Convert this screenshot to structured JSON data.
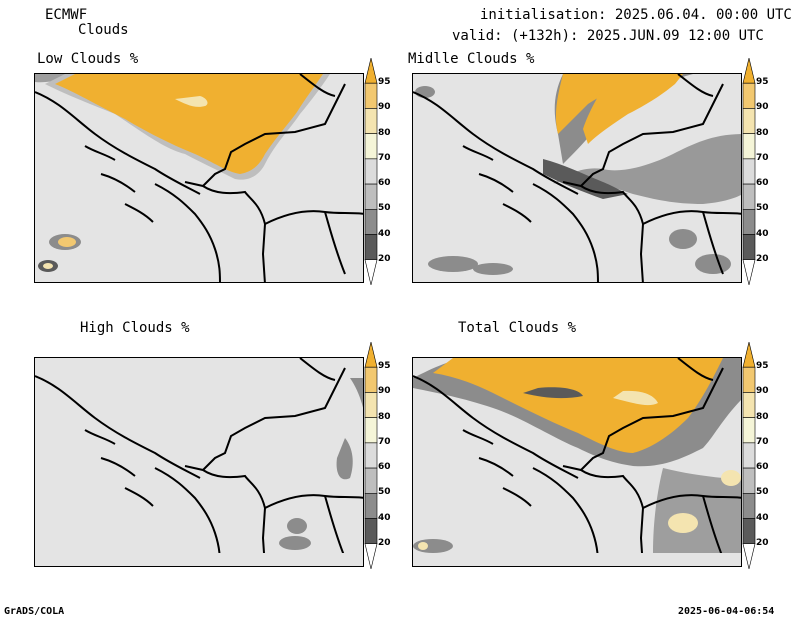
{
  "header": {
    "model": "ECMWF",
    "product": "Clouds",
    "init": "initialisation: 2025.06.04. 00:00 UTC",
    "valid": "valid: (+132h): 2025.JUN.09 12:00 UTC"
  },
  "panels": [
    {
      "title": "Low Clouds %"
    },
    {
      "title": "Midlle Clouds %"
    },
    {
      "title": "High Clouds %"
    },
    {
      "title": "Total Clouds %"
    }
  ],
  "colorbar": {
    "levels": [
      "95",
      "90",
      "80",
      "70",
      "60",
      "50",
      "40",
      "20"
    ],
    "colors": [
      "#f0b030",
      "#f2c870",
      "#f4e4b0",
      "#f5f5d8",
      "#dcdcdc",
      "#bebebe",
      "#8c8c8c",
      "#5a5a5a",
      "#ffffff"
    ]
  },
  "footer": {
    "left": "GrADS/COLA",
    "right": "2025-06-04-06:54"
  }
}
